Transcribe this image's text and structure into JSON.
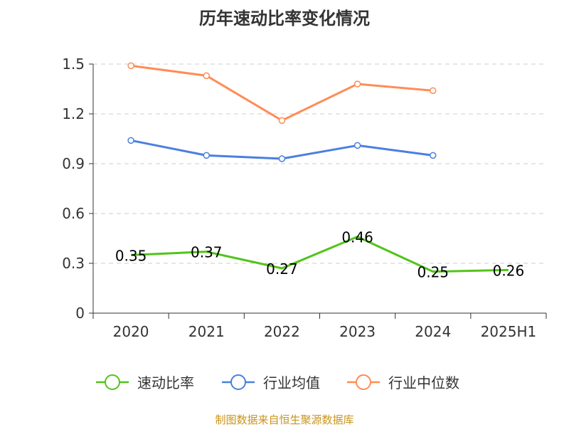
{
  "chart_data": {
    "type": "line",
    "title": "历年速动比率变化情况",
    "categories": [
      "2020",
      "2021",
      "2022",
      "2023",
      "2024",
      "2025H1"
    ],
    "ylim": [
      0,
      1.5
    ],
    "yticks": [
      "0",
      "0.3",
      "0.6",
      "0.9",
      "1.2",
      "1.5"
    ],
    "grid": true,
    "legend_position": "bottom",
    "series": [
      {
        "name": "速动比率",
        "color": "#52c41a",
        "values": [
          0.35,
          0.37,
          0.27,
          0.46,
          0.25,
          0.26
        ],
        "labels": [
          "0.35",
          "0.37",
          "0.27",
          "0.46",
          "0.25",
          "0.26"
        ]
      },
      {
        "name": "行业均值",
        "color": "#4a7fe0",
        "values": [
          1.04,
          0.95,
          0.93,
          1.01,
          0.95,
          null
        ]
      },
      {
        "name": "行业中位数",
        "color": "#ff8c55",
        "values": [
          1.49,
          1.43,
          1.16,
          1.38,
          1.34,
          null
        ]
      }
    ],
    "source": "制图数据来自恒生聚源数据库"
  }
}
